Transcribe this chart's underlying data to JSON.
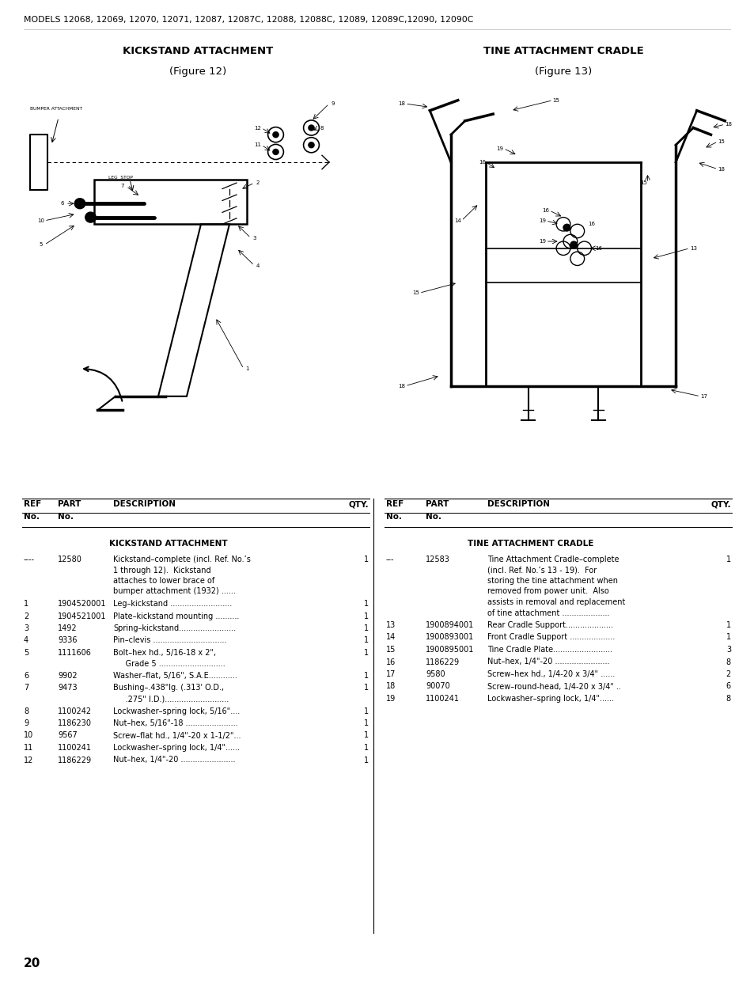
{
  "page_title": "MODELS 12068, 12069, 12070, 12071, 12087, 12087C, 12088, 12088C, 12089, 12089C,12090, 12090C",
  "page_number": "20",
  "fig1_title_line1": "KICKSTAND ATTACHMENT",
  "fig1_title_line2": "(Figure 12)",
  "fig2_title_line1": "TINE ATTACHMENT CRADLE",
  "fig2_title_line2": "(Figure 13)",
  "table1_section_title": "KICKSTAND ATTACHMENT",
  "table2_section_title": "TINE ATTACHMENT CRADLE",
  "table1_rows": [
    [
      "----",
      "12580",
      "Kickstand–complete (incl. Ref. No.’s\n1 through 12).  Kickstand\nattaches to lower brace of\nbumper attachment (1932) ......",
      "1"
    ],
    [
      "1",
      "1904520001",
      "Leg–kickstand ..........................",
      "1"
    ],
    [
      "2",
      "1904521001",
      "Plate–kickstand mounting ..........",
      "1"
    ],
    [
      "3",
      "1492",
      "Spring–kickstand........................",
      "1"
    ],
    [
      "4",
      "9336",
      "Pin–clevis ...............................",
      "1"
    ],
    [
      "5",
      "1111606",
      "Bolt–hex hd., 5/16-18 x 2\",\n     Grade 5 ............................",
      "1"
    ],
    [
      "6",
      "9902",
      "Washer–flat, 5/16\", S.A.E............",
      "1"
    ],
    [
      "7",
      "9473",
      "Bushing–.438\"lg. (.313' O.D.,\n     .275\" I.D.)...........................",
      "1"
    ],
    [
      "8",
      "1100242",
      "Lockwasher–spring lock, 5/16\"....",
      "1"
    ],
    [
      "9",
      "1186230",
      "Nut–hex, 5/16\"‑18 ......................",
      "1"
    ],
    [
      "10",
      "9567",
      "Screw–flat hd., 1/4\"‑20 x 1-1/2\"...",
      "1"
    ],
    [
      "11",
      "1100241",
      "Lockwasher–spring lock, 1/4\"......",
      "1"
    ],
    [
      "12",
      "1186229",
      "Nut–hex, 1/4\"‑20 .......................",
      "1"
    ]
  ],
  "table2_rows": [
    [
      "---",
      "12583",
      "Tine Attachment Cradle–complete\n(incl. Ref. No.’s 13 - 19).  For\nstoring the tine attachment when\nremoved from power unit.  Also\nassists in removal and replacement\nof tine attachment ....................",
      "1"
    ],
    [
      "13",
      "1900894001",
      "Rear Cradle Support....................",
      "1"
    ],
    [
      "14",
      "1900893001",
      "Front Cradle Support ...................",
      "1"
    ],
    [
      "15",
      "1900895001",
      "Tine Cradle Plate.........................",
      "3"
    ],
    [
      "16",
      "1186229",
      "Nut–hex, 1/4\"‑20 .......................",
      "8"
    ],
    [
      "17",
      "9580",
      "Screw–hex hd., 1/4-20 x 3/4\" ......",
      "2"
    ],
    [
      "18",
      "90070",
      "Screw–round-head, 1/4-20 x 3/4\" ..",
      "6"
    ],
    [
      "19",
      "1100241",
      "Lockwasher–spring lock, 1/4\"......",
      "8"
    ]
  ],
  "bg_color": "#ffffff",
  "text_color": "#000000"
}
